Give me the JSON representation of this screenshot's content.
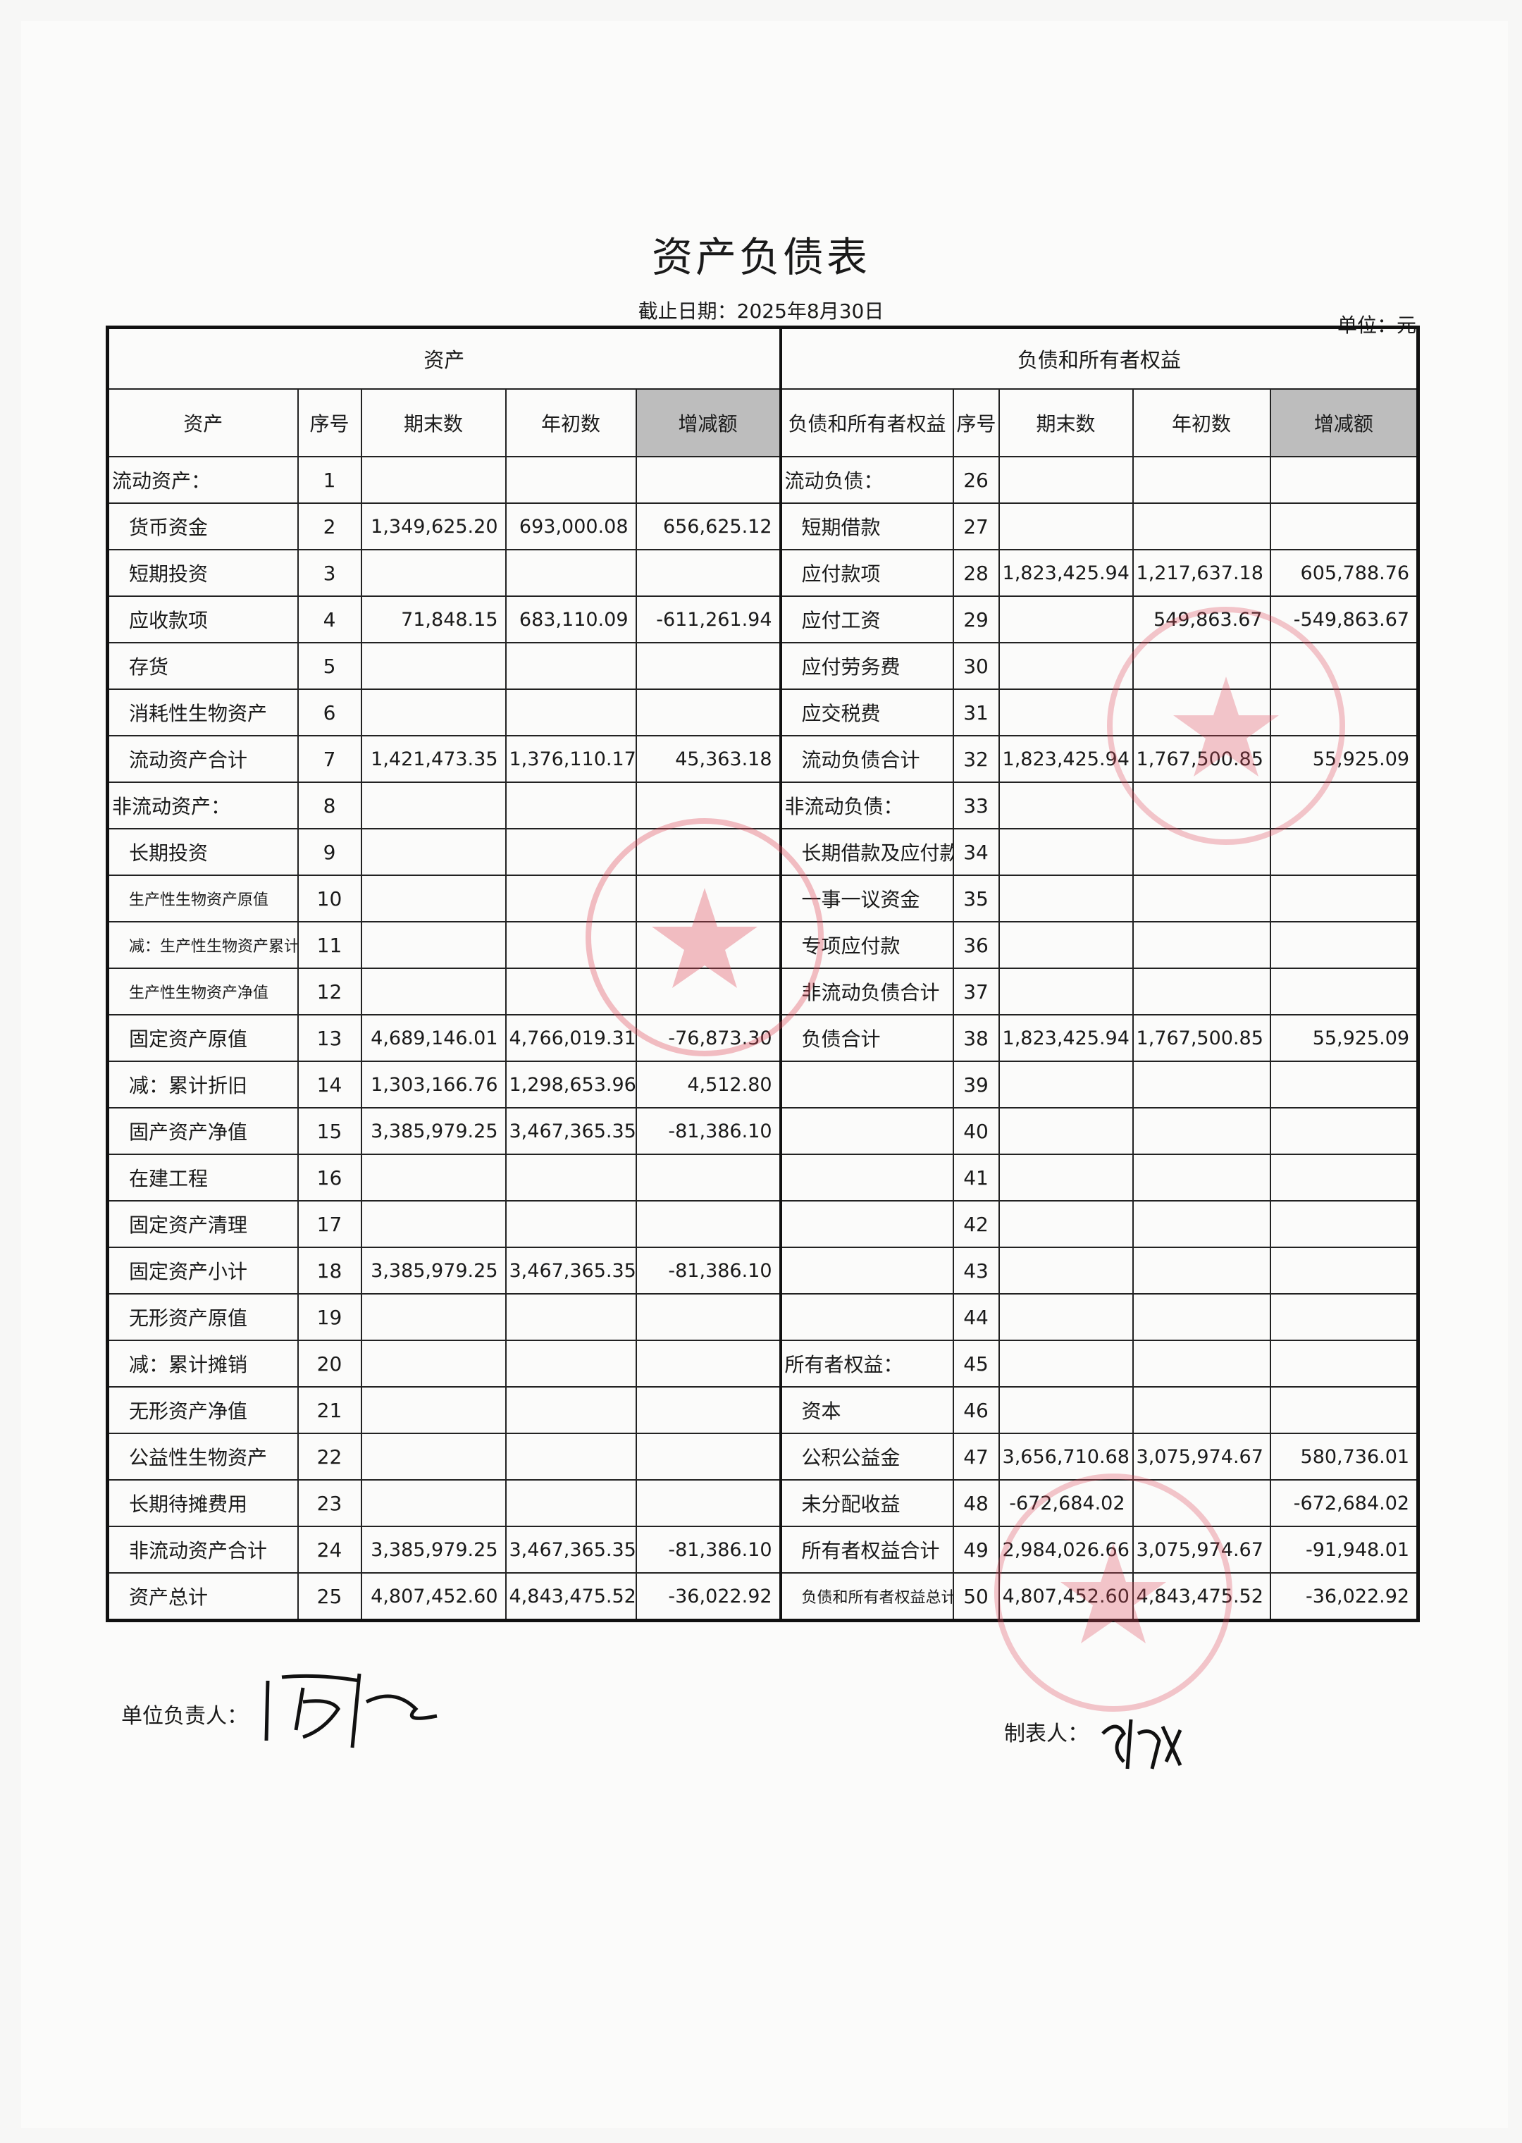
{
  "title": "资产负债表",
  "date_line": "截止日期：2025年8月30日",
  "unit": "单位：元",
  "sections": {
    "assets": "资产",
    "liabilities": "负债和所有者权益"
  },
  "headers": {
    "left": [
      "资产",
      "序号",
      "期末数",
      "年初数",
      "增减额"
    ],
    "right": [
      "负债和所有者权益",
      "序号",
      "期末数",
      "年初数",
      "增减额"
    ]
  },
  "rows": [
    {
      "l": [
        "流动资产：",
        "1",
        "",
        "",
        ""
      ],
      "r": [
        "流动负债：",
        "26",
        "",
        "",
        ""
      ]
    },
    {
      "l": [
        "货币资金",
        "2",
        "1,349,625.20",
        "693,000.08",
        "656,625.12"
      ],
      "r": [
        "短期借款",
        "27",
        "",
        "",
        ""
      ]
    },
    {
      "l": [
        "短期投资",
        "3",
        "",
        "",
        ""
      ],
      "r": [
        "应付款项",
        "28",
        "1,823,425.94",
        "1,217,637.18",
        "605,788.76"
      ]
    },
    {
      "l": [
        "应收款项",
        "4",
        "71,848.15",
        "683,110.09",
        "-611,261.94"
      ],
      "r": [
        "应付工资",
        "29",
        "",
        "549,863.67",
        "-549,863.67"
      ]
    },
    {
      "l": [
        "存货",
        "5",
        "",
        "",
        ""
      ],
      "r": [
        "应付劳务费",
        "30",
        "",
        "",
        ""
      ]
    },
    {
      "l": [
        "消耗性生物资产",
        "6",
        "",
        "",
        ""
      ],
      "r": [
        "应交税费",
        "31",
        "",
        "",
        ""
      ]
    },
    {
      "l": [
        "流动资产合计",
        "7",
        "1,421,473.35",
        "1,376,110.17",
        "45,363.18"
      ],
      "r": [
        "流动负债合计",
        "32",
        "1,823,425.94",
        "1,767,500.85",
        "55,925.09"
      ]
    },
    {
      "l": [
        "非流动资产：",
        "8",
        "",
        "",
        ""
      ],
      "r": [
        "非流动负债：",
        "33",
        "",
        "",
        ""
      ]
    },
    {
      "l": [
        "长期投资",
        "9",
        "",
        "",
        ""
      ],
      "r": [
        "长期借款及应付款",
        "34",
        "",
        "",
        ""
      ]
    },
    {
      "l": [
        "生产性生物资产原值",
        "10",
        "",
        "",
        ""
      ],
      "r": [
        "一事一议资金",
        "35",
        "",
        "",
        ""
      ]
    },
    {
      "l": [
        "减：生产性生物资产累计折旧",
        "11",
        "",
        "",
        ""
      ],
      "r": [
        "专项应付款",
        "36",
        "",
        "",
        ""
      ]
    },
    {
      "l": [
        "生产性生物资产净值",
        "12",
        "",
        "",
        ""
      ],
      "r": [
        "非流动负债合计",
        "37",
        "",
        "",
        ""
      ]
    },
    {
      "l": [
        "固定资产原值",
        "13",
        "4,689,146.01",
        "4,766,019.31",
        "-76,873.30"
      ],
      "r": [
        "负债合计",
        "38",
        "1,823,425.94",
        "1,767,500.85",
        "55,925.09"
      ]
    },
    {
      "l": [
        "减：累计折旧",
        "14",
        "1,303,166.76",
        "1,298,653.96",
        "4,512.80"
      ],
      "r": [
        "",
        "39",
        "",
        "",
        ""
      ]
    },
    {
      "l": [
        "固产资产净值",
        "15",
        "3,385,979.25",
        "3,467,365.35",
        "-81,386.10"
      ],
      "r": [
        "",
        "40",
        "",
        "",
        ""
      ]
    },
    {
      "l": [
        "在建工程",
        "16",
        "",
        "",
        ""
      ],
      "r": [
        "",
        "41",
        "",
        "",
        ""
      ]
    },
    {
      "l": [
        "固定资产清理",
        "17",
        "",
        "",
        ""
      ],
      "r": [
        "",
        "42",
        "",
        "",
        ""
      ]
    },
    {
      "l": [
        "固定资产小计",
        "18",
        "3,385,979.25",
        "3,467,365.35",
        "-81,386.10"
      ],
      "r": [
        "",
        "43",
        "",
        "",
        ""
      ]
    },
    {
      "l": [
        "无形资产原值",
        "19",
        "",
        "",
        ""
      ],
      "r": [
        "",
        "44",
        "",
        "",
        ""
      ]
    },
    {
      "l": [
        "减：累计摊销",
        "20",
        "",
        "",
        ""
      ],
      "r": [
        "所有者权益：",
        "45",
        "",
        "",
        ""
      ]
    },
    {
      "l": [
        "无形资产净值",
        "21",
        "",
        "",
        ""
      ],
      "r": [
        "资本",
        "46",
        "",
        "",
        ""
      ]
    },
    {
      "l": [
        "公益性生物资产",
        "22",
        "",
        "",
        ""
      ],
      "r": [
        "公积公益金",
        "47",
        "3,656,710.68",
        "3,075,974.67",
        "580,736.01"
      ]
    },
    {
      "l": [
        "长期待摊费用",
        "23",
        "",
        "",
        ""
      ],
      "r": [
        "未分配收益",
        "48",
        "-672,684.02",
        "",
        "-672,684.02"
      ]
    },
    {
      "l": [
        "非流动资产合计",
        "24",
        "3,385,979.25",
        "3,467,365.35",
        "-81,386.10"
      ],
      "r": [
        "所有者权益合计",
        "49",
        "2,984,026.66",
        "3,075,974.67",
        "-91,948.01"
      ]
    },
    {
      "l": [
        "资产总计",
        "25",
        "4,807,452.60",
        "4,843,475.52",
        "-36,022.92"
      ],
      "r": [
        "负债和所有者权益总计",
        "50",
        "4,807,452.60",
        "4,843,475.52",
        "-36,022.92"
      ]
    }
  ],
  "footer": {
    "responsible_label": "单位负责人：",
    "preparer_label": "制表人："
  },
  "colors": {
    "stamp": "#e0485a",
    "shade": "#bdbdbd"
  }
}
